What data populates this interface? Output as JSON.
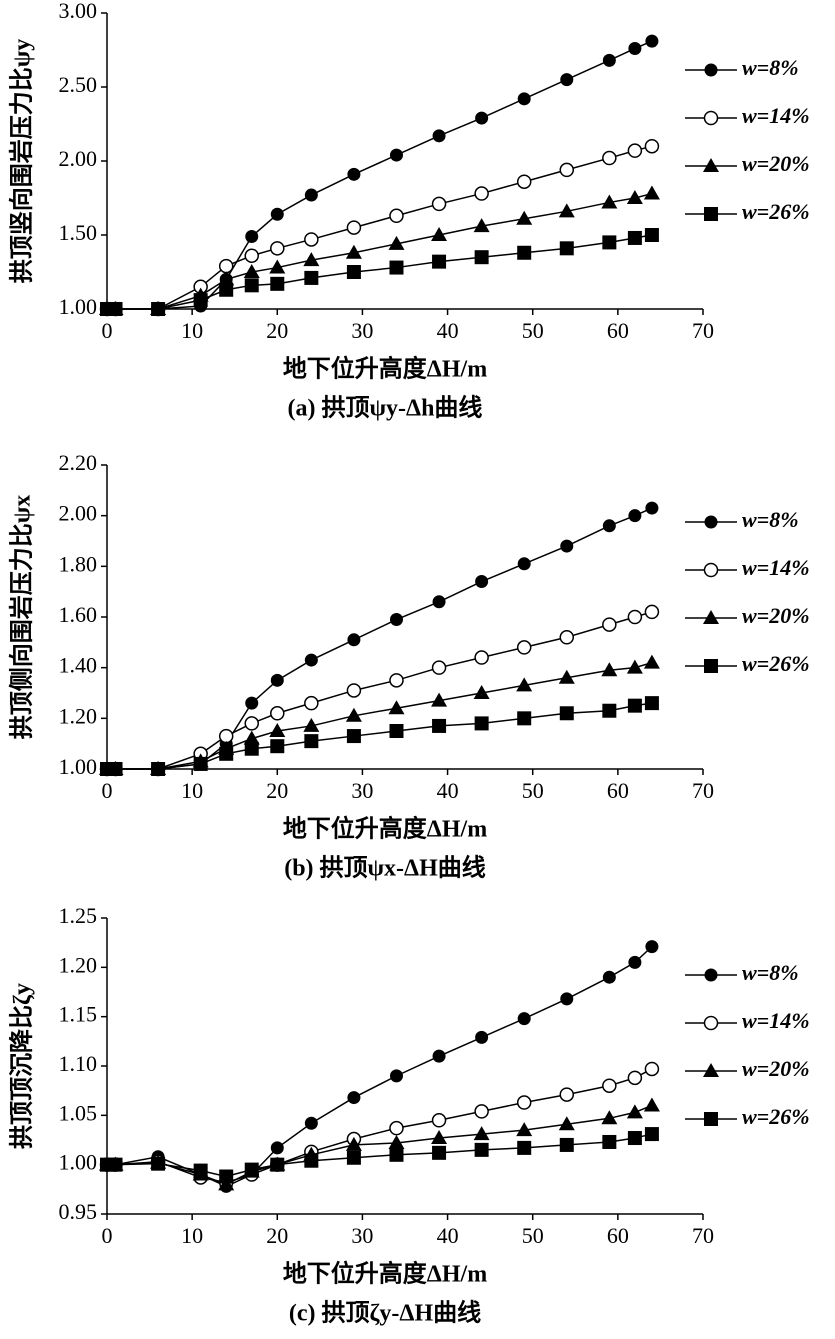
{
  "chart_data": [
    {
      "type": "line",
      "title": "(a) 拱顶ψy-Δh曲线",
      "xlabel": "地下位升高度ΔH/m",
      "ylabel": "拱顶竖向围岩压力比ψy",
      "x": [
        0,
        1,
        6,
        11,
        14,
        17,
        20,
        24,
        29,
        34,
        39,
        44,
        49,
        54,
        59,
        62,
        64
      ],
      "xlim": [
        0,
        70
      ],
      "xticks": [
        0,
        10,
        20,
        30,
        40,
        50,
        60,
        70
      ],
      "ylim": [
        1,
        3
      ],
      "yticks": [
        {
          "value": 1,
          "label": "1.00"
        },
        {
          "value": 1.5,
          "label": "1.50"
        },
        {
          "value": 2,
          "label": "2.00"
        },
        {
          "value": 2.5,
          "label": "2.50"
        },
        {
          "value": 3,
          "label": "3.00"
        }
      ],
      "series": [
        {
          "name": "w=8%",
          "color": "#000000",
          "marker": "circle",
          "values": [
            1,
            1,
            1,
            1.02,
            1.2,
            1.49,
            1.64,
            1.77,
            1.91,
            2.04,
            2.17,
            2.29,
            2.42,
            2.55,
            2.68,
            2.76,
            2.81
          ]
        },
        {
          "name": "w=14%",
          "color": "#000000",
          "marker": "circle-open",
          "values": [
            1,
            1,
            1,
            1.15,
            1.29,
            1.36,
            1.41,
            1.47,
            1.55,
            1.63,
            1.71,
            1.78,
            1.86,
            1.94,
            2.02,
            2.07,
            2.1
          ]
        },
        {
          "name": "w=20%",
          "color": "#000000",
          "marker": "triangle",
          "values": [
            1,
            1,
            1,
            1.09,
            1.2,
            1.25,
            1.28,
            1.33,
            1.38,
            1.44,
            1.5,
            1.56,
            1.61,
            1.66,
            1.72,
            1.75,
            1.78
          ]
        },
        {
          "name": "w=26%",
          "color": "#000000",
          "marker": "square",
          "values": [
            1,
            1,
            1,
            1.06,
            1.13,
            1.16,
            1.17,
            1.21,
            1.25,
            1.28,
            1.32,
            1.35,
            1.38,
            1.41,
            1.45,
            1.48,
            1.5
          ]
        }
      ]
    },
    {
      "type": "line",
      "title": "(b) 拱顶ψx-ΔH曲线",
      "xlabel": "地下位升高度ΔH/m",
      "ylabel": "拱顶侧向围岩压力比ψx",
      "x": [
        0,
        1,
        6,
        11,
        14,
        17,
        20,
        24,
        29,
        34,
        39,
        44,
        49,
        54,
        59,
        62,
        64
      ],
      "xlim": [
        0,
        70
      ],
      "xticks": [
        0,
        10,
        20,
        30,
        40,
        50,
        60,
        70
      ],
      "ylim": [
        1,
        2.2
      ],
      "yticks": [
        {
          "value": 1,
          "label": "1.00"
        },
        {
          "value": 1.2,
          "label": "1.20"
        },
        {
          "value": 1.4,
          "label": "1.40"
        },
        {
          "value": 1.6,
          "label": "1.60"
        },
        {
          "value": 1.8,
          "label": "1.80"
        },
        {
          "value": 2,
          "label": "2.00"
        },
        {
          "value": 2.2,
          "label": "2.20"
        }
      ],
      "series": [
        {
          "name": "w=8%",
          "color": "#000000",
          "marker": "circle",
          "values": [
            1,
            1,
            1,
            1.02,
            1.1,
            1.26,
            1.35,
            1.43,
            1.51,
            1.59,
            1.66,
            1.74,
            1.81,
            1.88,
            1.96,
            2.0,
            2.03
          ]
        },
        {
          "name": "w=14%",
          "color": "#000000",
          "marker": "circle-open",
          "values": [
            1,
            1,
            1,
            1.06,
            1.13,
            1.18,
            1.22,
            1.26,
            1.31,
            1.35,
            1.4,
            1.44,
            1.48,
            1.52,
            1.57,
            1.6,
            1.62
          ]
        },
        {
          "name": "w=20%",
          "color": "#000000",
          "marker": "triangle",
          "values": [
            1,
            1,
            1,
            1.03,
            1.08,
            1.12,
            1.15,
            1.17,
            1.21,
            1.24,
            1.27,
            1.3,
            1.33,
            1.36,
            1.39,
            1.4,
            1.42
          ]
        },
        {
          "name": "w=26%",
          "color": "#000000",
          "marker": "square",
          "values": [
            1,
            1,
            1,
            1.02,
            1.06,
            1.08,
            1.09,
            1.11,
            1.13,
            1.15,
            1.17,
            1.18,
            1.2,
            1.22,
            1.23,
            1.25,
            1.26
          ]
        }
      ]
    },
    {
      "type": "line",
      "title": "(c) 拱顶ζy-ΔH曲线",
      "xlabel": "地下位升高度ΔH/m",
      "ylabel": "拱顶顶沉降比ζy",
      "x": [
        0,
        1,
        6,
        11,
        14,
        17,
        20,
        24,
        29,
        34,
        39,
        44,
        49,
        54,
        59,
        62,
        64
      ],
      "xlim": [
        0,
        70
      ],
      "xticks": [
        0,
        10,
        20,
        30,
        40,
        50,
        60,
        70
      ],
      "ylim": [
        0.95,
        1.25
      ],
      "yticks": [
        {
          "value": 0.95,
          "label": "0.95"
        },
        {
          "value": 1,
          "label": "1.00"
        },
        {
          "value": 1.05,
          "label": "1.05"
        },
        {
          "value": 1.1,
          "label": "1.10"
        },
        {
          "value": 1.15,
          "label": "1.15"
        },
        {
          "value": 1.2,
          "label": "1.20"
        },
        {
          "value": 1.25,
          "label": "1.25"
        }
      ],
      "series": [
        {
          "name": "w=8%",
          "color": "#000000",
          "marker": "circle",
          "values": [
            1,
            1,
            1.008,
            0.99,
            0.978,
            0.99,
            1.017,
            1.042,
            1.068,
            1.09,
            1.11,
            1.129,
            1.148,
            1.168,
            1.19,
            1.205,
            1.221
          ]
        },
        {
          "name": "w=14%",
          "color": "#000000",
          "marker": "circle-open",
          "values": [
            1,
            1,
            1.003,
            0.987,
            0.982,
            0.99,
            1.0,
            1.013,
            1.026,
            1.037,
            1.045,
            1.054,
            1.063,
            1.071,
            1.08,
            1.088,
            1.097
          ]
        },
        {
          "name": "w=20%",
          "color": "#000000",
          "marker": "triangle",
          "values": [
            1,
            1,
            1.002,
            0.99,
            0.98,
            0.993,
            1.0,
            1.01,
            1.02,
            1.022,
            1.027,
            1.031,
            1.035,
            1.041,
            1.047,
            1.053,
            1.06
          ]
        },
        {
          "name": "w=26%",
          "color": "#000000",
          "marker": "square",
          "values": [
            1,
            1,
            1.001,
            0.994,
            0.988,
            0.995,
            1.0,
            1.004,
            1.007,
            1.01,
            1.012,
            1.015,
            1.017,
            1.02,
            1.023,
            1.027,
            1.031
          ]
        }
      ]
    }
  ]
}
